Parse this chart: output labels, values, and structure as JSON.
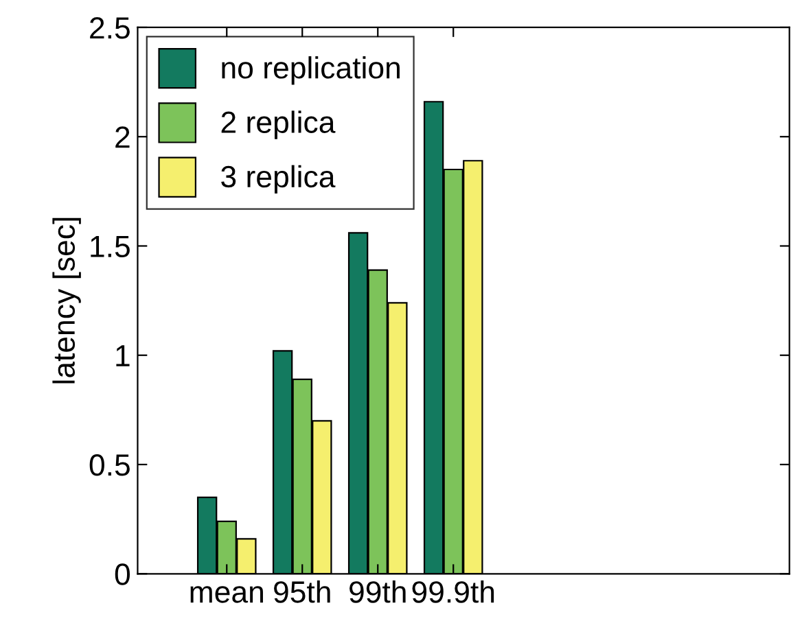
{
  "chart_data": {
    "type": "bar",
    "ylabel": "latency [sec]",
    "categories": [
      "mean",
      "95th",
      "99th",
      "99.9th"
    ],
    "series": [
      {
        "name": "no replication",
        "color": "#137a5f",
        "values": [
          0.35,
          1.02,
          1.56,
          2.16
        ]
      },
      {
        "name": "2 replica",
        "color": "#7dc35a",
        "values": [
          0.24,
          0.89,
          1.39,
          1.85
        ]
      },
      {
        "name": "3 replica",
        "color": "#f5ef6e",
        "values": [
          0.16,
          0.7,
          1.24,
          1.89
        ]
      }
    ],
    "ylim": [
      0,
      2.5
    ],
    "yticks": [
      0,
      0.5,
      1,
      1.5,
      2,
      2.5
    ],
    "grid": false,
    "legend": "top left"
  }
}
